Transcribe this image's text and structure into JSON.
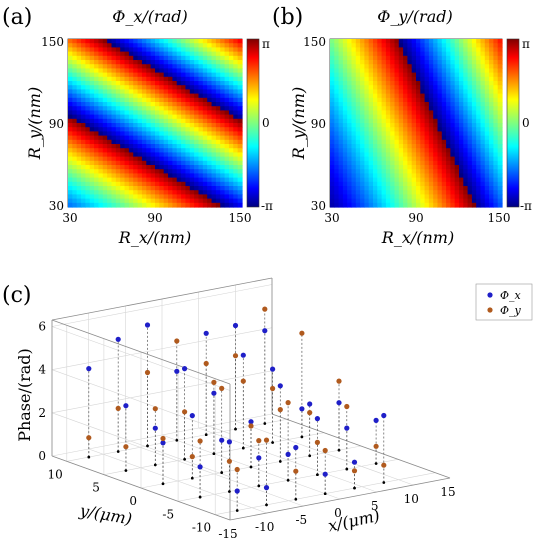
{
  "figure": {
    "panel_labels": [
      "(a)",
      "(b)",
      "(c)"
    ]
  },
  "chart_data": [
    {
      "type": "heatmap",
      "panel": "(a)",
      "title": "Φ_x/(rad)",
      "xlabel": "R_x/(nm)",
      "ylabel": "R_y/(nm)",
      "xlim": [
        30,
        150
      ],
      "ylim": [
        30,
        150
      ],
      "x_ticks": [
        "30",
        "90",
        "150"
      ],
      "y_ticks": [
        "30",
        "90",
        "150"
      ],
      "colorbar": {
        "range": [
          -3.14159,
          3.14159
        ],
        "tick_labels": [
          "π",
          "0",
          "-π"
        ],
        "colormap": "jet"
      },
      "field": "phase_x"
    },
    {
      "type": "heatmap",
      "panel": "(b)",
      "title": "Φ_y/(rad)",
      "xlabel": "R_x/(nm)",
      "ylabel": "R_y/(nm)",
      "xlim": [
        30,
        150
      ],
      "ylim": [
        30,
        150
      ],
      "x_ticks": [
        "30",
        "90",
        "150"
      ],
      "y_ticks": [
        "30",
        "90",
        "150"
      ],
      "colorbar": {
        "range": [
          -3.14159,
          3.14159
        ],
        "tick_labels": [
          "π",
          "0",
          "-π"
        ],
        "colormap": "jet"
      },
      "field": "phase_y"
    },
    {
      "type": "scatter",
      "panel": "(c)",
      "projection": "3d",
      "xlabel": "x/(μm)",
      "ylabel": "y/(μm)",
      "zlabel": "Phase/(rad)",
      "xlim": [
        -15,
        15
      ],
      "ylim": [
        -12,
        12
      ],
      "zlim": [
        0,
        6.3
      ],
      "x_ticks": [
        "-15",
        "-10",
        "-5",
        "0",
        "5",
        "10",
        "15"
      ],
      "y_ticks": [
        "10",
        "5",
        "0",
        "-5",
        "-10"
      ],
      "z_ticks": [
        "0",
        "2",
        "4",
        "6"
      ],
      "legend": {
        "position": "top-right",
        "entries": [
          "Φ_x",
          "Φ_y"
        ]
      },
      "series_colors": [
        "#1f1fc8",
        "#b05a1e"
      ],
      "series": [
        {
          "name": "Φ_x",
          "points": [
            [
              -12,
              10,
              4.1
            ],
            [
              -8,
              10,
              5.2
            ],
            [
              -4,
              10,
              5.6
            ],
            [
              0,
              10,
              3.2
            ],
            [
              4,
              10,
              4.7
            ],
            [
              8,
              10,
              4.8
            ],
            [
              12,
              10,
              4.3
            ],
            [
              -12,
              5,
              3.0
            ],
            [
              -8,
              5,
              1.7
            ],
            [
              -4,
              5,
              4.2
            ],
            [
              0,
              5,
              2.8
            ],
            [
              4,
              5,
              4.3
            ],
            [
              8,
              5,
              3.4
            ],
            [
              12,
              5,
              1.3
            ],
            [
              -12,
              0,
              1.9
            ],
            [
              -8,
              0,
              2.9
            ],
            [
              -4,
              0,
              1.5
            ],
            [
              0,
              0,
              2.1
            ],
            [
              4,
              0,
              3.5
            ],
            [
              8,
              0,
              2.4
            ],
            [
              12,
              0,
              2.2
            ],
            [
              -12,
              -5,
              1.4
            ],
            [
              -8,
              -5,
              2.3
            ],
            [
              -4,
              -5,
              1.3
            ],
            [
              0,
              -5,
              1.2
            ],
            [
              4,
              -5,
              2.6
            ],
            [
              8,
              -5,
              1.9
            ],
            [
              12,
              -5,
              2.0
            ],
            [
              -12,
              -10,
              0.9
            ],
            [
              -8,
              -10,
              0.8
            ],
            [
              -4,
              -10,
              2.4
            ],
            [
              0,
              -10,
              0.9
            ],
            [
              4,
              -10,
              1.2
            ],
            [
              8,
              -10,
              3.1
            ]
          ]
        },
        {
          "name": "Φ_y",
          "points": [
            [
              -12,
              10,
              0.9
            ],
            [
              -8,
              10,
              2.0
            ],
            [
              -4,
              10,
              3.4
            ],
            [
              0,
              10,
              4.6
            ],
            [
              4,
              10,
              3.3
            ],
            [
              8,
              10,
              3.4
            ],
            [
              12,
              10,
              5.3
            ],
            [
              -12,
              5,
              1.1
            ],
            [
              -8,
              5,
              2.6
            ],
            [
              -4,
              5,
              2.2
            ],
            [
              0,
              5,
              3.3
            ],
            [
              4,
              5,
              3.1
            ],
            [
              8,
              5,
              2.5
            ],
            [
              12,
              5,
              4.8
            ],
            [
              -12,
              0,
              2.1
            ],
            [
              -8,
              0,
              1.0
            ],
            [
              -4,
              0,
              3.9
            ],
            [
              0,
              0,
              1.9
            ],
            [
              4,
              0,
              2.4
            ],
            [
              8,
              0,
              2.0
            ],
            [
              12,
              0,
              3.2
            ],
            [
              -12,
              -5,
              2.6
            ],
            [
              -8,
              -5,
              1.4
            ],
            [
              -4,
              -5,
              2.1
            ],
            [
              0,
              -5,
              3.6
            ],
            [
              4,
              -5,
              1.5
            ],
            [
              8,
              -5,
              2.9
            ],
            [
              12,
              -5,
              0.8
            ],
            [
              -12,
              -10,
              1.9
            ],
            [
              -8,
              -10,
              3.0
            ],
            [
              -4,
              -10,
              1.3
            ],
            [
              0,
              -10,
              2.0
            ],
            [
              4,
              -10,
              0.8
            ],
            [
              8,
              -10,
              0.8
            ]
          ]
        }
      ]
    }
  ]
}
